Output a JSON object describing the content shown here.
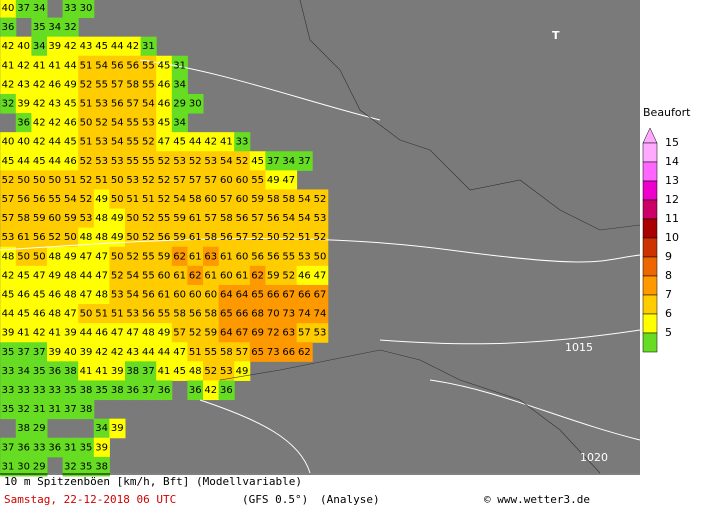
{
  "map": {
    "rows": [
      [
        40,
        37,
        34,
        null,
        33,
        30
      ],
      [
        36,
        null,
        35,
        34,
        32
      ],
      [
        42,
        40,
        34,
        39,
        42,
        43,
        45,
        44,
        42,
        31
      ],
      [
        41,
        42,
        41,
        41,
        44,
        51,
        54,
        56,
        56,
        55,
        45,
        31
      ],
      [
        42,
        43,
        42,
        46,
        49,
        52,
        55,
        57,
        58,
        55,
        46,
        34
      ],
      [
        32,
        39,
        42,
        43,
        45,
        51,
        53,
        56,
        57,
        54,
        46,
        29,
        30
      ],
      [
        null,
        36,
        42,
        42,
        46,
        50,
        52,
        54,
        55,
        53,
        45,
        34
      ],
      [
        40,
        40,
        42,
        44,
        45,
        51,
        53,
        54,
        55,
        52,
        47,
        45,
        44,
        42,
        41,
        33
      ],
      [
        45,
        44,
        45,
        44,
        46,
        52,
        53,
        53,
        55,
        55,
        52,
        53,
        52,
        53,
        54,
        52,
        45,
        37,
        34,
        37
      ],
      [
        52,
        50,
        50,
        50,
        51,
        52,
        51,
        50,
        53,
        52,
        52,
        57,
        57,
        57,
        60,
        60,
        55,
        49,
        47
      ],
      [
        57,
        56,
        56,
        55,
        54,
        52,
        49,
        50,
        51,
        51,
        52,
        54,
        58,
        60,
        57,
        60,
        59,
        58,
        58,
        54,
        52
      ],
      [
        57,
        58,
        59,
        60,
        59,
        53,
        48,
        49,
        50,
        52,
        55,
        59,
        61,
        57,
        58,
        56,
        57,
        56,
        54,
        54,
        53
      ],
      [
        53,
        61,
        56,
        52,
        50,
        48,
        48,
        49,
        50,
        52,
        56,
        59,
        61,
        58,
        56,
        57,
        52,
        50,
        52,
        51,
        52
      ],
      [
        48,
        50,
        50,
        48,
        49,
        47,
        47,
        50,
        52,
        55,
        59,
        62,
        61,
        63,
        61,
        60,
        56,
        56,
        55,
        53,
        50
      ],
      [
        42,
        45,
        47,
        49,
        48,
        44,
        47,
        52,
        54,
        55,
        60,
        61,
        62,
        61,
        60,
        61,
        62,
        59,
        52,
        46,
        47
      ],
      [
        45,
        46,
        45,
        46,
        48,
        47,
        48,
        53,
        54,
        56,
        61,
        60,
        60,
        60,
        64,
        64,
        65,
        66,
        67,
        66,
        67
      ],
      [
        44,
        45,
        46,
        48,
        47,
        50,
        51,
        51,
        53,
        56,
        55,
        58,
        56,
        58,
        65,
        66,
        68,
        70,
        73,
        74,
        74
      ],
      [
        39,
        41,
        42,
        41,
        39,
        44,
        46,
        47,
        47,
        48,
        49,
        57,
        52,
        59,
        64,
        67,
        69,
        72,
        63,
        57,
        53
      ],
      [
        35,
        37,
        37,
        39,
        40,
        39,
        42,
        42,
        43,
        44,
        44,
        47,
        51,
        55,
        58,
        57,
        65,
        73,
        66,
        62
      ],
      [
        33,
        34,
        35,
        36,
        38,
        41,
        41,
        39,
        38,
        37,
        41,
        45,
        48,
        52,
        53,
        49
      ],
      [
        33,
        33,
        33,
        33,
        35,
        38,
        35,
        38,
        36,
        37,
        36,
        null,
        36,
        42,
        36
      ],
      [
        35,
        32,
        31,
        31,
        37,
        38
      ],
      [
        null,
        38,
        29,
        null,
        null,
        null,
        34,
        39
      ],
      [
        37,
        36,
        33,
        36,
        31,
        35,
        39
      ],
      [
        31,
        30,
        29,
        null,
        32,
        35,
        38
      ]
    ],
    "isobar_labels": [
      "1015",
      "1020"
    ],
    "pressure_marker": "T"
  },
  "legend": {
    "title": "Beaufort",
    "items": [
      {
        "label": 15,
        "color": "#ffaaff"
      },
      {
        "label": 14,
        "color": "#ff66ff"
      },
      {
        "label": 13,
        "color": "#ee00cc"
      },
      {
        "label": 12,
        "color": "#cc0066"
      },
      {
        "label": 11,
        "color": "#aa0000"
      },
      {
        "label": 10,
        "color": "#cc3300"
      },
      {
        "label": 9,
        "color": "#ee6600"
      },
      {
        "label": 8,
        "color": "#ff9900"
      },
      {
        "label": 7,
        "color": "#ffcc00"
      },
      {
        "label": 6,
        "color": "#ffff00"
      },
      {
        "label": 5,
        "color": "#66dd22"
      }
    ]
  },
  "footer": {
    "description": "10 m Spitzenböen [km/h, Bft] (Modellvariable)",
    "date": "Samstag, 22-12-2018  06 UTC",
    "model": "(GFS 0.5°)",
    "run": "(Analyse)",
    "source": "© www.wetter3.de"
  }
}
